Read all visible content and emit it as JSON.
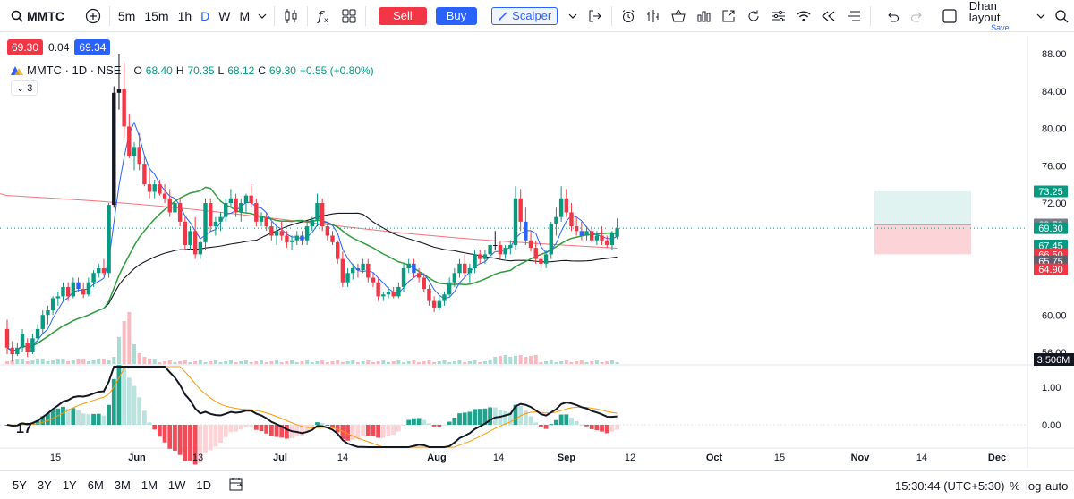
{
  "toolbar": {
    "symbol": "MMTC",
    "timeframes": [
      "5m",
      "15m",
      "1h",
      "D",
      "W",
      "M"
    ],
    "active_timeframe": "D",
    "sell_label": "Sell",
    "buy_label": "Buy",
    "scalper_label": "Scalper",
    "layout_name": "Dhan layout",
    "layout_sub": "Save"
  },
  "quote": {
    "sell": "69.30",
    "spread": "0.04",
    "buy": "69.34"
  },
  "legend": {
    "symbol": "MMTC · 1D · NSE",
    "o_label": "O",
    "o": "68.40",
    "h_label": "H",
    "h": "70.35",
    "l_label": "L",
    "l": "68.12",
    "c_label": "C",
    "c": "69.30",
    "change": "+0.55 (+0.80%)",
    "collapsed_count": "3"
  },
  "price_axis": {
    "ticks": [
      "88.00",
      "84.00",
      "80.00",
      "76.00",
      "72.00",
      "60.00",
      "56.00"
    ],
    "badges": [
      {
        "value": "73.25",
        "color": "#089981"
      },
      {
        "value": "69.70",
        "color": "#787b86"
      },
      {
        "value": "69.30",
        "color": "#089981"
      },
      {
        "value": "67.45",
        "color": "#089981"
      },
      {
        "value": "66.50",
        "color": "#f23645"
      },
      {
        "value": "65.75",
        "color": "#5d606b"
      },
      {
        "value": "64.90",
        "color": "#f23645"
      }
    ],
    "volume_badge": "3.506M"
  },
  "macd_axis": {
    "ticks": [
      "1.00",
      "0.00"
    ]
  },
  "time_axis": [
    "15",
    "Jun",
    "13",
    "Jul",
    "14",
    "Aug",
    "14",
    "Sep",
    "12",
    "Oct",
    "15",
    "Nov",
    "14",
    "Dec"
  ],
  "bottombar": {
    "ranges": [
      "5Y",
      "3Y",
      "1Y",
      "6M",
      "3M",
      "1M",
      "1W",
      "1D"
    ],
    "clock": "15:30:44 (UTC+5:30)",
    "pct": "%",
    "log": "log",
    "auto": "auto"
  },
  "colors": {
    "up": "#089981",
    "down": "#f23645",
    "accent": "#2962ff"
  },
  "chart_data": {
    "type": "candlestick",
    "ylim": [
      54.5,
      89
    ],
    "candles": [
      [
        58.5,
        59.5,
        55.8,
        56.5
      ],
      [
        56.5,
        57.2,
        55,
        55.8
      ],
      [
        55.8,
        57,
        55.6,
        56.5
      ],
      [
        56.5,
        58.5,
        56,
        58
      ],
      [
        57,
        57.5,
        55.5,
        56
      ],
      [
        56,
        58,
        55.8,
        57.5
      ],
      [
        57.5,
        59,
        57,
        58.5
      ],
      [
        58.5,
        60.5,
        58,
        60
      ],
      [
        60,
        61,
        59,
        60.5
      ],
      [
        60.5,
        62,
        60,
        61.8
      ],
      [
        61.8,
        62.5,
        61,
        62
      ],
      [
        62,
        63.5,
        61.5,
        63
      ],
      [
        63,
        63.5,
        61.5,
        62
      ],
      [
        62,
        64,
        61.8,
        63.5
      ],
      [
        63.5,
        64,
        62.5,
        62.8
      ],
      [
        62.8,
        63.5,
        61.8,
        62.2
      ],
      [
        62.2,
        64,
        62,
        63.5
      ],
      [
        63.5,
        64.8,
        63,
        64.5
      ],
      [
        64.5,
        65.5,
        64,
        65
      ],
      [
        65,
        66,
        64.2,
        64.5
      ],
      [
        64.5,
        72,
        64,
        71.8
      ],
      [
        71.8,
        84.5,
        71.5,
        83.8
      ],
      [
        83.8,
        88,
        82,
        84.2
      ],
      [
        84.2,
        87,
        79,
        80.2
      ],
      [
        80.2,
        81.5,
        76.8,
        77
      ],
      [
        77,
        78.5,
        75.5,
        78
      ],
      [
        78,
        79.5,
        75.5,
        76.2
      ],
      [
        76.2,
        77,
        73.8,
        74
      ],
      [
        74,
        75.5,
        72.5,
        73.2
      ],
      [
        73.2,
        74.5,
        72.5,
        74
      ],
      [
        74,
        74.5,
        72.8,
        73
      ],
      [
        73,
        74,
        72,
        72.5
      ],
      [
        72.5,
        73.5,
        70.5,
        71
      ],
      [
        71,
        72.2,
        70.5,
        72
      ],
      [
        72,
        72.5,
        69.5,
        70
      ],
      [
        70,
        70.5,
        67,
        67.5
      ],
      [
        67.5,
        69.5,
        67,
        69
      ],
      [
        69,
        70.5,
        66,
        66.5
      ],
      [
        66.5,
        68,
        66,
        67.8
      ],
      [
        67.8,
        72.5,
        67,
        72
      ],
      [
        72,
        72.5,
        69,
        69.5
      ],
      [
        69.5,
        70.5,
        68.5,
        70
      ],
      [
        70,
        71,
        69,
        70.5
      ],
      [
        70.5,
        72.5,
        70,
        72
      ],
      [
        72,
        73.5,
        71.5,
        72.5
      ],
      [
        72.5,
        73,
        70.5,
        71
      ],
      [
        71,
        72.5,
        70,
        72
      ],
      [
        72,
        73,
        71,
        72.8
      ],
      [
        72.8,
        74,
        71.5,
        72
      ],
      [
        72,
        72.5,
        69.5,
        70
      ],
      [
        70,
        71,
        69.5,
        70.5
      ],
      [
        70.5,
        71,
        69,
        69.5
      ],
      [
        69.5,
        70,
        68,
        68.5
      ],
      [
        68.5,
        69.5,
        67.5,
        69
      ],
      [
        69,
        70,
        68,
        68.5
      ],
      [
        68.5,
        69,
        67.2,
        67.8
      ],
      [
        67.8,
        68.5,
        67,
        68
      ],
      [
        68,
        69,
        67.5,
        68.5
      ],
      [
        68.5,
        69,
        67.5,
        68
      ],
      [
        68,
        70,
        67.5,
        69.5
      ],
      [
        69.5,
        70.5,
        69,
        70.2
      ],
      [
        70.2,
        73,
        69.5,
        72
      ],
      [
        72,
        72.5,
        69,
        69.5
      ],
      [
        69.5,
        70,
        68,
        68.5
      ],
      [
        68.5,
        69,
        67.5,
        67.8
      ],
      [
        67.8,
        68,
        65.5,
        66
      ],
      [
        66,
        66.8,
        63,
        63.5
      ],
      [
        63.5,
        65,
        63,
        64.5
      ],
      [
        64.5,
        65.5,
        63.8,
        65
      ],
      [
        65,
        65.5,
        64,
        64.8
      ],
      [
        64.8,
        66,
        64.5,
        65.5
      ],
      [
        65.5,
        66,
        63.5,
        64
      ],
      [
        64,
        64.5,
        63,
        63.5
      ],
      [
        63.5,
        64,
        61.5,
        62
      ],
      [
        62,
        62.5,
        61.5,
        62.2
      ],
      [
        62.2,
        63,
        61.8,
        62.5
      ],
      [
        62.5,
        63,
        61.8,
        62
      ],
      [
        62,
        63.5,
        61.8,
        63
      ],
      [
        63,
        65.5,
        62.5,
        65
      ],
      [
        65,
        66,
        64.5,
        65.5
      ],
      [
        65.5,
        66,
        64,
        64.5
      ],
      [
        64.5,
        65,
        63.5,
        64
      ],
      [
        64,
        64.5,
        62.5,
        62.8
      ],
      [
        62.8,
        63.2,
        61,
        61.5
      ],
      [
        61.5,
        62,
        60.3,
        60.8
      ],
      [
        60.8,
        62,
        60.5,
        61.5
      ],
      [
        61.5,
        62.5,
        61,
        62.2
      ],
      [
        62.2,
        64,
        62,
        63.5
      ],
      [
        63.5,
        65,
        63,
        64.5
      ],
      [
        64.5,
        66,
        64,
        65.5
      ],
      [
        65.5,
        66.5,
        64,
        64.5
      ],
      [
        64.5,
        65.5,
        63.5,
        65
      ],
      [
        65,
        67,
        64.5,
        66.5
      ],
      [
        66.5,
        67,
        65.5,
        66
      ],
      [
        66,
        67,
        65.5,
        66.5
      ],
      [
        66.5,
        68,
        66,
        67.5
      ],
      [
        67.5,
        69,
        67,
        67.5
      ],
      [
        67.5,
        68,
        66,
        66.5
      ],
      [
        66.5,
        67.5,
        66,
        67.2
      ],
      [
        67.2,
        68,
        66.5,
        67.5
      ],
      [
        67.5,
        73.8,
        67,
        72.5
      ],
      [
        72.5,
        73.5,
        69,
        70
      ],
      [
        70,
        71.5,
        67.5,
        68
      ],
      [
        68,
        69,
        66.8,
        67.2
      ],
      [
        67.2,
        68,
        65.5,
        66
      ],
      [
        66,
        66.5,
        65,
        65.5
      ],
      [
        65.5,
        67,
        65,
        66.5
      ],
      [
        66.5,
        70,
        66,
        69.8
      ],
      [
        69.8,
        71.5,
        68.5,
        70.5
      ],
      [
        70.5,
        73.8,
        70,
        72.5
      ],
      [
        72.5,
        73.5,
        70.5,
        71
      ],
      [
        71,
        72,
        69,
        69.5
      ],
      [
        69.5,
        70.5,
        68.5,
        69
      ],
      [
        69,
        70,
        68,
        68.5
      ],
      [
        68.5,
        69.5,
        68,
        69
      ],
      [
        69,
        69.5,
        67.8,
        68
      ],
      [
        68,
        69,
        67.5,
        68.5
      ],
      [
        68.5,
        69.5,
        67.5,
        68
      ],
      [
        68,
        68.5,
        67.2,
        67.5
      ],
      [
        67.5,
        69,
        67,
        68.8
      ],
      [
        68.4,
        70.35,
        68.12,
        69.3
      ]
    ],
    "x_labels": [
      "15",
      "Jun",
      "13",
      "Jul",
      "14",
      "Aug",
      "14",
      "Sep",
      "12",
      "Oct",
      "15",
      "Nov",
      "14",
      "Dec"
    ]
  }
}
